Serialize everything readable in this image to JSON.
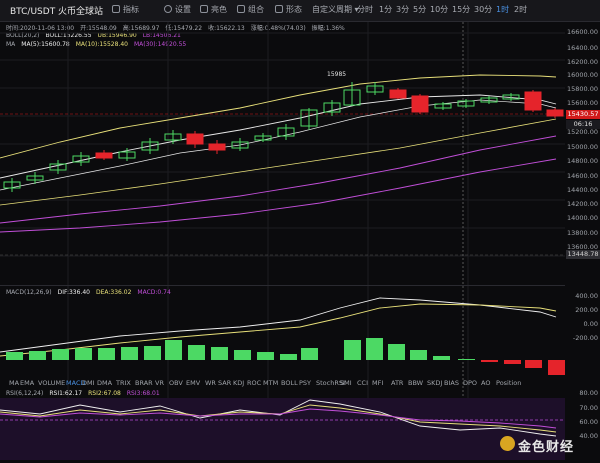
{
  "toolbar": {
    "symbol": "BTC/USDT 火币全球站",
    "items": [
      {
        "label": "指标",
        "icon": "indicator-icon"
      },
      {
        "label": "设置",
        "icon": "settings-icon"
      },
      {
        "label": "亮色",
        "icon": "theme-icon"
      },
      {
        "label": "组合",
        "icon": "combo-icon"
      },
      {
        "label": "形态",
        "icon": "pattern-icon"
      },
      {
        "label": "自定义周期",
        "icon": "chevron-down-icon"
      }
    ],
    "timeframes": [
      "分时",
      "1分",
      "3分",
      "5分",
      "10分",
      "15分",
      "30分",
      "1时",
      "2时"
    ],
    "active_timeframe": "1时"
  },
  "info_line": {
    "time": "时间:2020-11-06 13:00",
    "open": "开:15548.09",
    "high": "高:15689.97",
    "low": "低:15479.22",
    "close": "收:15622.13",
    "change": "涨幅:0.48%(74.03)",
    "amplitude": "振幅:1.36%"
  },
  "boll_line": {
    "label": "BOLL(20,2)",
    "boll": "BOLL:15226.55",
    "ub": "UB:15946.90",
    "lb": "LB:14506.21"
  },
  "ma_line": {
    "label": "MA",
    "ma5": "MA(5):15600.78",
    "ma10": "MA(10):15528.40",
    "ma30": "MA(30):14920.55"
  },
  "price_axis": [
    "16600.00",
    "16400.00",
    "16200.00",
    "16000.00",
    "15800.00",
    "15600.00",
    "15430.57",
    "15200.00",
    "15000.00",
    "14800.00",
    "14600.00",
    "14400.00",
    "14200.00",
    "14000.00",
    "13800.00",
    "13600.00",
    "13448.78"
  ],
  "current_price": "15430.57",
  "countdown": "06:16",
  "low_marker": "13448.78",
  "high_label": "15985",
  "macd_line": {
    "label": "MACD(12,26,9)",
    "dif": "DIF:336.40",
    "dea": "DEA:336.02",
    "macd": "MACD:0.74"
  },
  "macd_axis": [
    "400.00",
    "200.00",
    "0.00",
    "-200.00"
  ],
  "indicators": [
    "MA",
    "EMA",
    "VOLUME",
    "MACD",
    "DMI",
    "DMA",
    "TRIX",
    "BRAR",
    "VR",
    "OBV",
    "EMV",
    "WR",
    "SAR",
    "KDJ",
    "ROC",
    "MTM",
    "BOLL",
    "PSY",
    "StochRSI",
    "SMI",
    "CCI",
    "MFI",
    "ATR",
    "BBW",
    "SKDJ",
    "BIAS",
    "DPO",
    "AO",
    "Position"
  ],
  "active_indicator": "MACD",
  "rsi_line": {
    "label": "RSI(6,12,24)",
    "rsi1": "RSI1:62.17",
    "rsi2": "RSI2:67.08",
    "rsi3": "RSI3:68.01"
  },
  "rsi_axis": [
    "80.00",
    "70.00",
    "60.00",
    "40.00"
  ],
  "watermark": "金色财经",
  "colors": {
    "up": "#4cd964",
    "down": "#e5242b",
    "ma5": "#f0f0f0",
    "ma10": "#e8e07a",
    "ma30": "#c14fd8",
    "boll": "#e8e8e8"
  }
}
